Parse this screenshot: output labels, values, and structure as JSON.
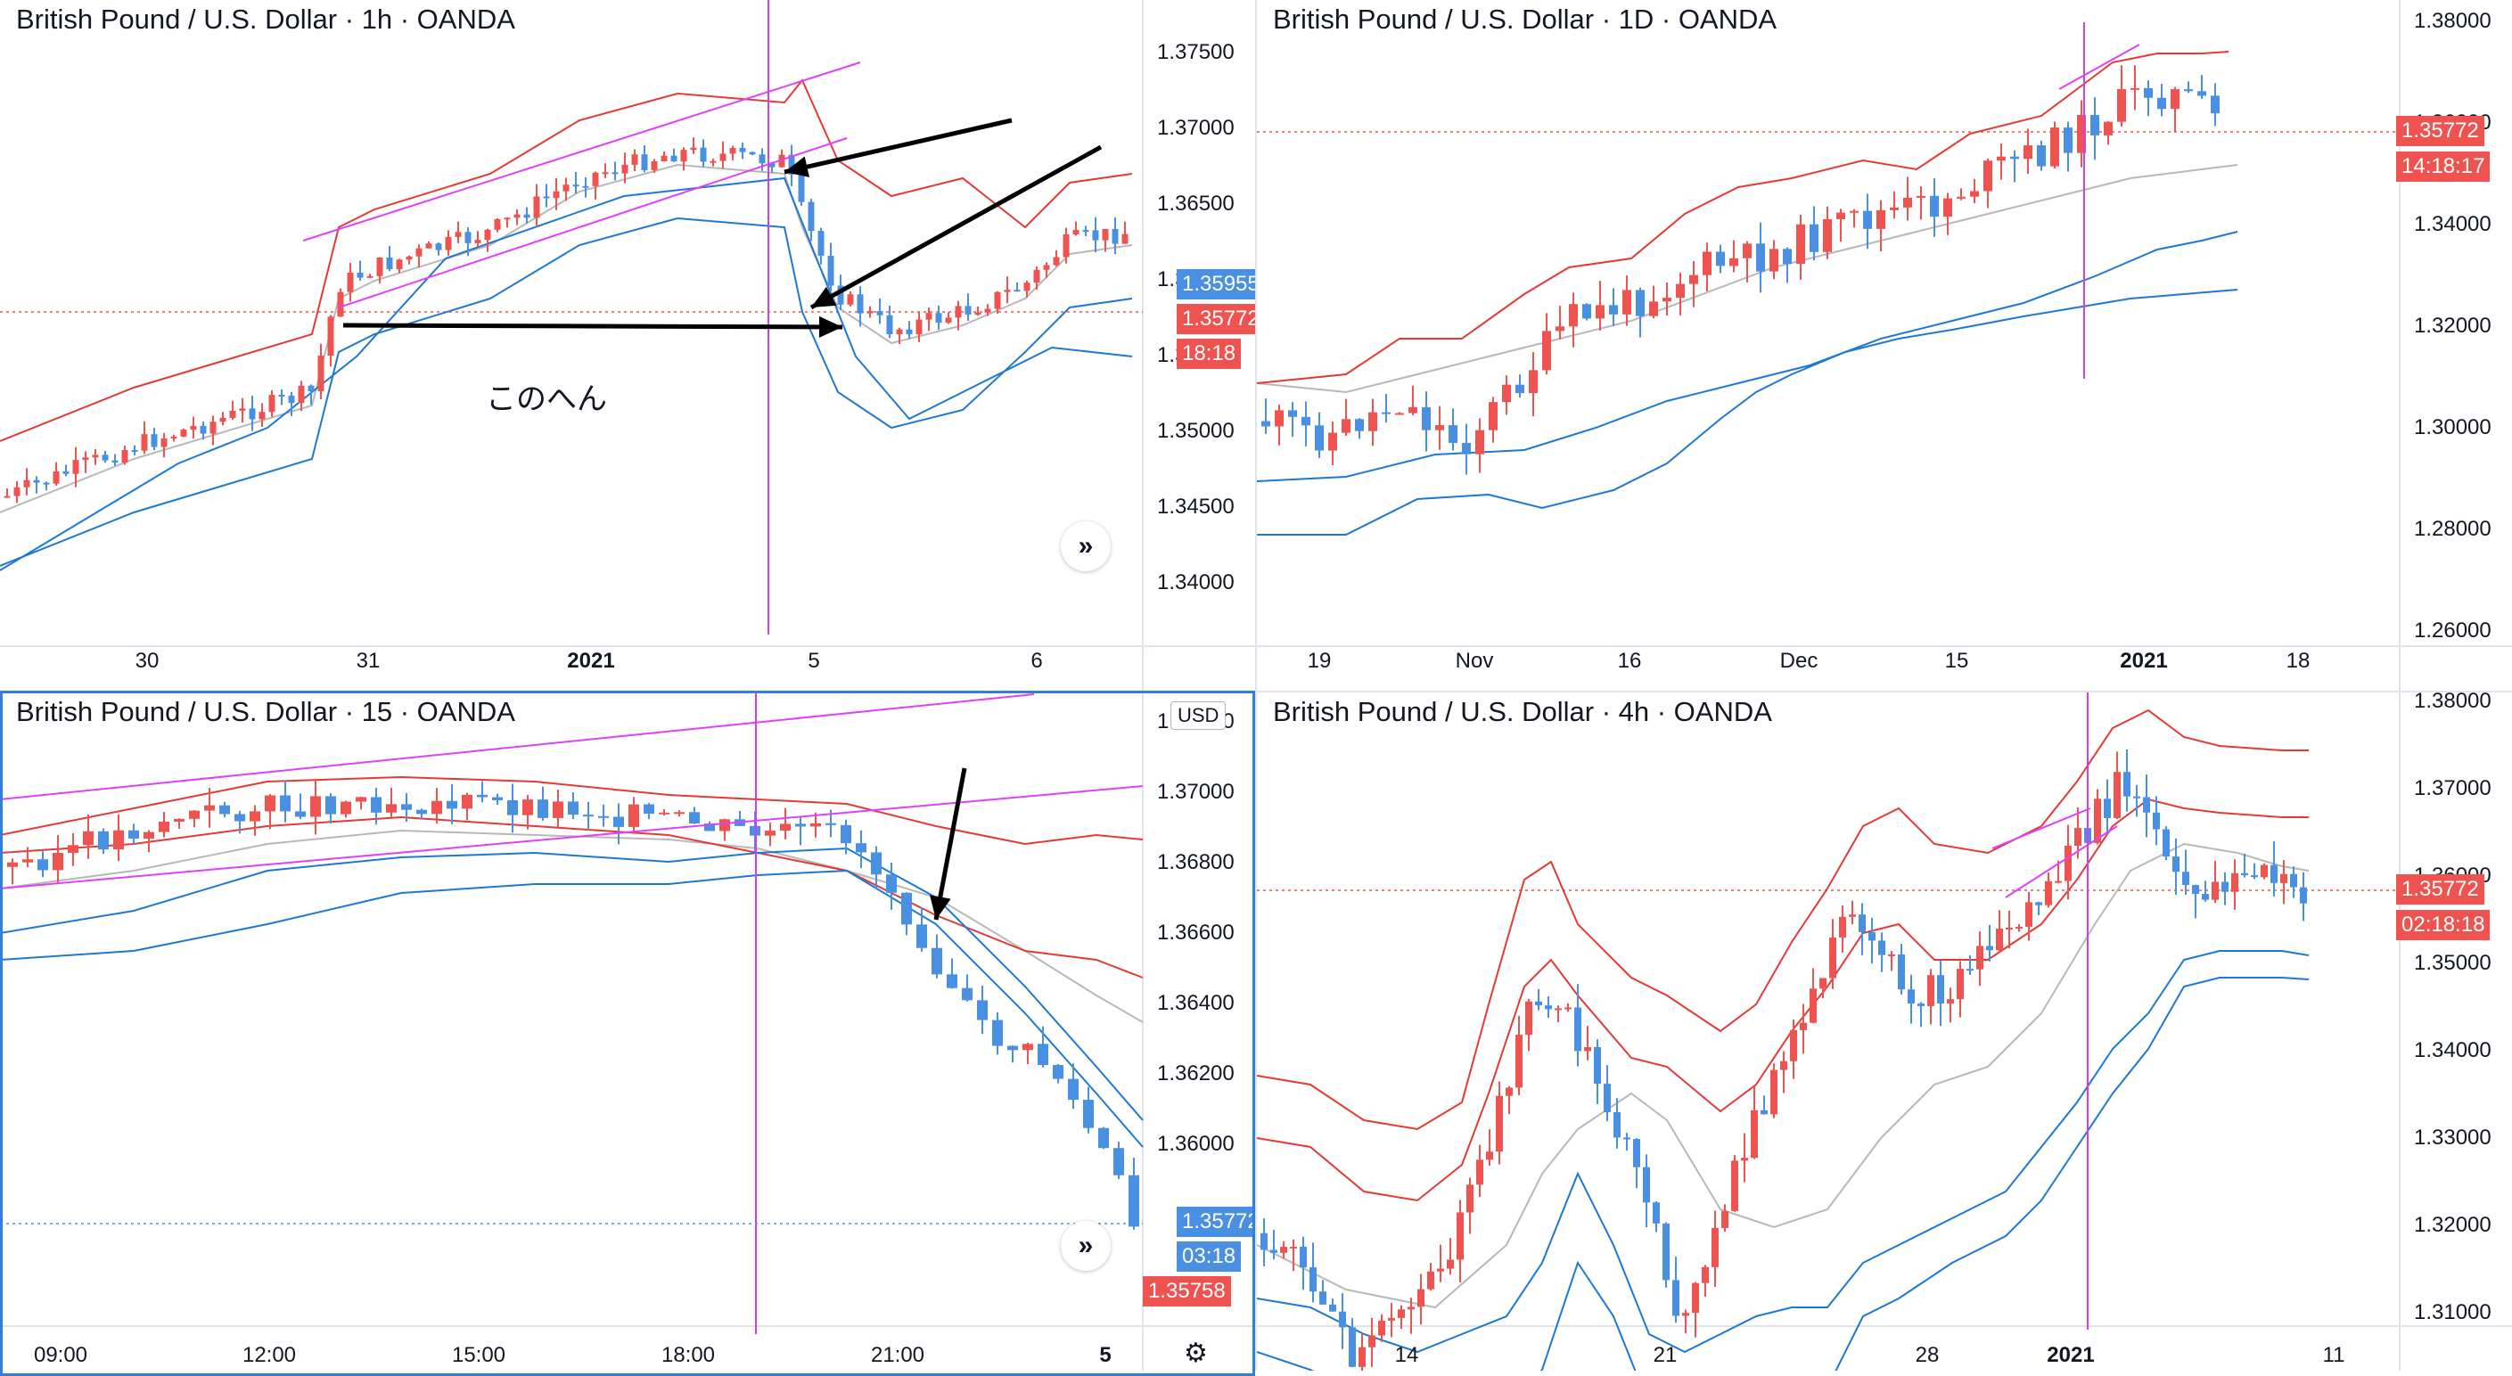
{
  "colors": {
    "up": "#ef5350",
    "down": "#4a90e2",
    "bb_upper": "#e53935",
    "bb_mid": "#b8b8b8",
    "bb_lower": "#1e78d2",
    "trend": "#e040fb",
    "marker": "#d040e8",
    "price_red": "#ef5350",
    "price_blue": "#4a90e2",
    "active_border": "#2f7fe0"
  },
  "panels": [
    {
      "id": "tl",
      "title": "British Pound / U.S. Dollar · 1h · OANDA",
      "y_axis": [
        "1.37500",
        "1.37000",
        "1.36500",
        "1.36000",
        "1.35500",
        "1.35000",
        "1.34500",
        "1.34000"
      ],
      "y_range": [
        1.338,
        1.378
      ],
      "x_axis": [
        "30",
        "31",
        "2021",
        "5",
        "6"
      ],
      "price_tags": [
        {
          "text": "1.35955",
          "color": "blue"
        },
        {
          "text": "1.35772",
          "color": "red"
        },
        {
          "text": "18:18",
          "color": "red"
        }
      ],
      "annotation": "このへん",
      "nav_icon": "»"
    },
    {
      "id": "tr",
      "title": "British Pound / U.S. Dollar · 1D · OANDA",
      "y_axis": [
        "1.38000",
        "1.36000",
        "1.34000",
        "1.32000",
        "1.30000",
        "1.28000",
        "1.26000"
      ],
      "y_range": [
        1.26,
        1.382
      ],
      "x_axis": [
        "19",
        "Nov",
        "16",
        "Dec",
        "15",
        "2021",
        "18"
      ],
      "price_tags": [
        {
          "text": "1.35772",
          "color": "red"
        },
        {
          "text": "14:18:17",
          "color": "red"
        }
      ]
    },
    {
      "id": "bl",
      "title": "British Pound / U.S. Dollar · 15 · OANDA",
      "y_axis": [
        "1.38000",
        "1.37000",
        "1.36800",
        "1.36600",
        "1.36400",
        "1.36200",
        "1.36000"
      ],
      "y_range": [
        1.3572,
        1.3709
      ],
      "x_axis": [
        "09:00",
        "12:00",
        "15:00",
        "18:00",
        "21:00",
        "5"
      ],
      "price_tags": [
        {
          "text": "1.35772",
          "color": "blue"
        },
        {
          "text": "03:18",
          "color": "blue"
        },
        {
          "text": "1.35758",
          "color": "red"
        }
      ],
      "currency": "USD",
      "nav_icon": "»"
    },
    {
      "id": "br",
      "title": "British Pound / U.S. Dollar · 4h · OANDA",
      "y_axis": [
        "1.38000",
        "1.37000",
        "1.36000",
        "1.35000",
        "1.34000",
        "1.33000",
        "1.32000",
        "1.31000"
      ],
      "y_range": [
        1.308,
        1.381
      ],
      "x_axis": [
        "14",
        "21",
        "28",
        "2021",
        "11"
      ],
      "price_tags": [
        {
          "text": "1.35772",
          "color": "red"
        },
        {
          "text": "02:18:18",
          "color": "red"
        }
      ]
    }
  ]
}
